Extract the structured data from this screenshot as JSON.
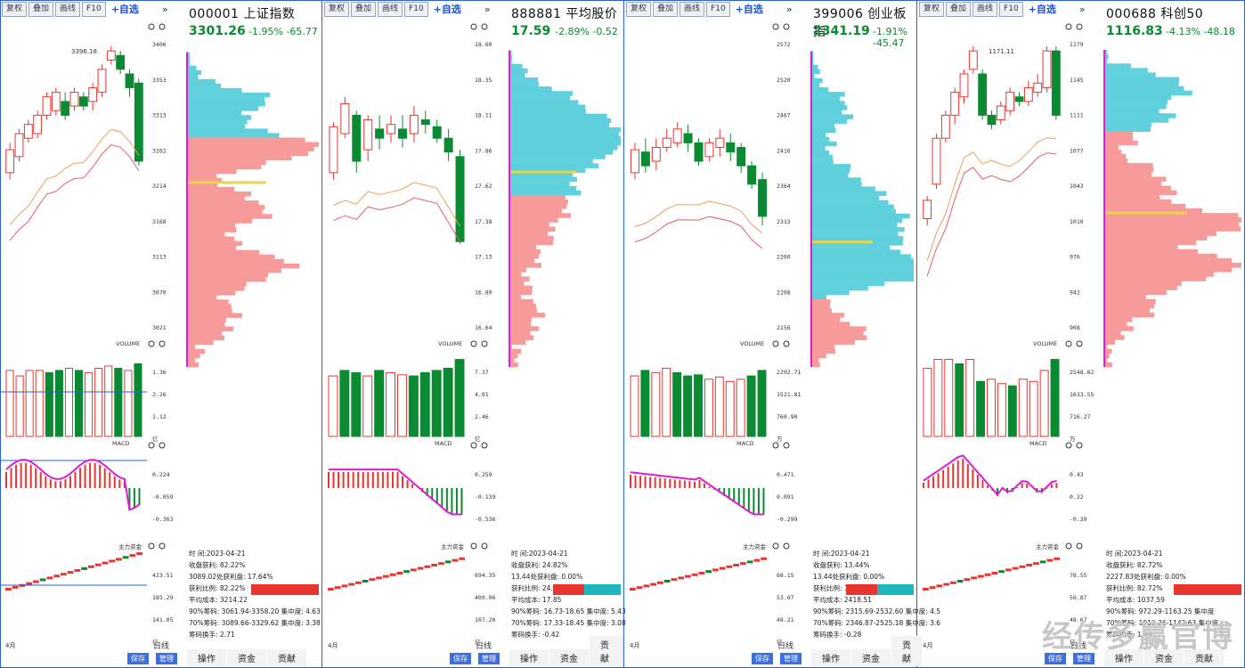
{
  "toolbar": {
    "items": [
      "复权",
      "叠加",
      "画线",
      "F10"
    ],
    "watchlist": "+自选",
    "more": "»"
  },
  "panels": [
    {
      "code": "000001",
      "name": "上证指数",
      "price": "3301.26",
      "pct": "-1.95%",
      "chg": "-65.77",
      "price_axis": [
        "3406",
        "3353",
        "3313",
        "3262",
        "3214",
        "3168",
        "3113",
        "3070",
        "3021"
      ],
      "high_label": "3396.18",
      "vol_axis": [
        "1.36",
        "2.26",
        "1.12",
        "亿"
      ],
      "macd_axis": [
        "0.224",
        "-0.059",
        "-0.363"
      ],
      "flow_axis": [
        "423.51",
        "185.29",
        "141.05",
        "亿"
      ],
      "info": [
        "时    间:2023-04-21",
        "收盘获利: 82.22%",
        "3089.02处获利盘: 17.64%",
        "获利比例: 82.22%",
        "平均成本: 3214.22",
        "90%筹码: 3061.94-3358.20 集中度: 4.63",
        "70%筹码: 3089.66-3329.62 集中度: 3.38",
        "筹码换手: 2.71"
      ],
      "tabs": [
        "操作",
        "资金",
        "贡献"
      ],
      "bottom": [
        "4月",
        "日线",
        "保存",
        "管理"
      ],
      "vol_label": "VOLUME",
      "macd_label": "MACD",
      "flow_label": "主力资金"
    },
    {
      "code": "888881",
      "name": "平均股价",
      "price": "17.59",
      "pct": "-2.89%",
      "chg": "-0.52",
      "price_axis": [
        "18.60",
        "18.35",
        "18.11",
        "17.86",
        "17.62",
        "17.38",
        "17.13",
        "16.89",
        "16.64"
      ],
      "high_label": "",
      "vol_axis": [
        "7.37",
        "4.91",
        "2.46",
        "亿"
      ],
      "macd_axis": [
        "0.259",
        "-0.139",
        "-0.536"
      ],
      "flow_axis": [
        "694.35",
        "400.96",
        "107.26",
        "亿"
      ],
      "info": [
        "时    间:2023-04-21",
        "收盘获利: 24.82%",
        "13.44处获利盘: 0.00%",
        "获利比例: 24.82%",
        "平均成本: 17.85",
        "90%筹码: 16.73-18.65 集中度: 5.43",
        "70%筹码: 17.33-18.45 集中度: 3.08",
        "筹码换手: -0.42"
      ],
      "tabs": [
        "操作",
        "资金",
        "贡献"
      ],
      "bottom": [
        "4月",
        "日线",
        "保存",
        "管理"
      ],
      "vol_label": "VOLUME",
      "macd_label": "MACD",
      "flow_label": "主力资金"
    },
    {
      "code": "399006",
      "name": "创业板指",
      "price": "2341.19",
      "pct": "-1.91%",
      "chg": "-45.47",
      "price_axis": [
        "2572",
        "2520",
        "2467",
        "2416",
        "2364",
        "2313",
        "2260",
        "2208",
        "2156"
      ],
      "high_label": "",
      "vol_axis": [
        "2292.71",
        "1521.81",
        "760.90",
        "万"
      ],
      "macd_axis": [
        "0.471",
        "0.091",
        "-0.299"
      ],
      "flow_axis": [
        "68.15",
        "53.67",
        "48.21",
        "亿"
      ],
      "info": [
        "时    间:2023-04-21",
        "收盘获利: 13.44%",
        "13.44处获利盘: 0.00%",
        "获利比例: 13.44%",
        "平均成本: 2418.51",
        "90%筹码: 2315.69-2532.60 集中度: 4.5",
        "70%筹码: 2346.87-2525.18 集中度: 3.6",
        "筹码换手: -0.28"
      ],
      "tabs": [
        "操作",
        "资金",
        "贡献"
      ],
      "bottom": [
        "4月",
        "日线",
        "保存",
        "管理"
      ],
      "vol_label": "VOLUME",
      "macd_label": "MACD",
      "flow_label": "主力资金"
    },
    {
      "code": "000688",
      "name": "科创50",
      "price": "1116.83",
      "pct": "-4.13%",
      "chg": "-48.18",
      "price_axis": [
        "1179",
        "1145",
        "1111",
        "1077",
        "1043",
        "1010",
        "976",
        "942",
        "908"
      ],
      "high_label": "1171.11",
      "vol_axis": [
        "2548.82",
        "1633.55",
        "716.27",
        "万"
      ],
      "macd_axis": [
        "0.43",
        "0.22",
        "-0.39"
      ],
      "flow_axis": [
        "78.55",
        "56.87",
        "48.67",
        "亿"
      ],
      "info": [
        "时    间:2023-04-21",
        "收盘获利: 82.72%",
        "2227.83处获利盘: 0.00%",
        "获利比例: 82.72%",
        "平均成本: 1037.59",
        "90%筹码: 972.29-1163.25 集中度",
        "70%筹码: 1010.36-1142.63 集中度",
        "筹码换手: 1.99"
      ],
      "tabs": [
        "操作",
        "资金",
        "贡献"
      ],
      "bottom": [
        "4月",
        "日线",
        "保存",
        "管理"
      ],
      "vol_label": "VOLUME",
      "macd_label": "MACD",
      "flow_label": "主力资金"
    }
  ],
  "watermark": "经传多赢官博",
  "colors": {
    "up": "#e8352f",
    "down": "#0c8a33",
    "chip_red": "#f79a9a",
    "chip_cyan": "#5fd0dc",
    "chip_yellow": "#e9d54a",
    "magenta": "#e01bd0",
    "frame": "#2a5fd8"
  }
}
